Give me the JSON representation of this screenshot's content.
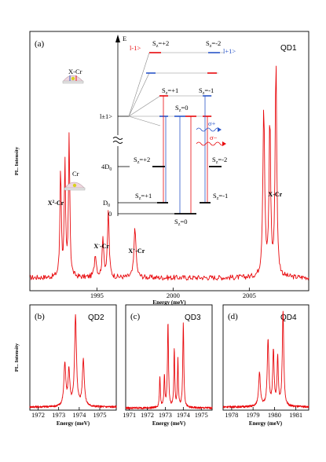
{
  "chart_data": [
    {
      "type": "line",
      "panel_label": "(a)",
      "title": "QD1",
      "xlabel": "Energy (meV)",
      "ylabel": "PL. Intensity",
      "xlim": [
        1990.6,
        2008.9
      ],
      "x_ticks": [
        "1995",
        "2000",
        "2005"
      ],
      "x_tick_values": [
        1995,
        2000,
        2005
      ],
      "grid": false,
      "peak_labels": [
        {
          "text": "X²-Cr",
          "x": 1992.3
        },
        {
          "text": "X⁻-Cr",
          "x": 1995.3
        },
        {
          "text": "X⁺-Cr",
          "x": 1997.6
        },
        {
          "text": "X-Cr",
          "x": 2006.7
        }
      ],
      "series": [
        {
          "color": "#e8080c",
          "baseline": 0.05,
          "peaks": [
            {
              "x": 1992.62,
              "h": 0.44,
              "w": 0.1
            },
            {
              "x": 1992.9,
              "h": 0.44,
              "w": 0.1
            },
            {
              "x": 1993.18,
              "h": 0.55,
              "w": 0.1
            },
            {
              "x": 1994.9,
              "h": 0.09,
              "w": 0.15
            },
            {
              "x": 1995.4,
              "h": 0.15,
              "w": 0.13
            },
            {
              "x": 1995.75,
              "h": 0.26,
              "w": 0.12
            },
            {
              "x": 1997.5,
              "h": 0.2,
              "w": 0.15
            },
            {
              "x": 2005.95,
              "h": 0.66,
              "w": 0.14
            },
            {
              "x": 2006.35,
              "h": 0.61,
              "w": 0.12
            },
            {
              "x": 2006.75,
              "h": 0.85,
              "w": 0.12
            }
          ]
        }
      ]
    },
    {
      "type": "line",
      "panel_label": "(b)",
      "title": "QD2",
      "xlabel": "Energy (meV)",
      "ylabel": "PL. Intensity",
      "xlim": [
        1971.6,
        1975.8
      ],
      "x_ticks": [
        "1972",
        "1973",
        "1974",
        "1975"
      ],
      "x_tick_values": [
        1972,
        1973,
        1974,
        1975
      ],
      "grid": false,
      "series": [
        {
          "color": "#e8080c",
          "baseline": 0.03,
          "peaks": [
            {
              "x": 1973.3,
              "h": 0.4,
              "w": 0.11
            },
            {
              "x": 1973.5,
              "h": 0.33,
              "w": 0.1
            },
            {
              "x": 1973.82,
              "h": 0.85,
              "w": 0.11
            },
            {
              "x": 1974.2,
              "h": 0.44,
              "w": 0.11
            }
          ]
        }
      ]
    },
    {
      "type": "line",
      "panel_label": "(c)",
      "title": "QD3",
      "xlabel": "Energy (meV)",
      "ylabel": "",
      "xlim": [
        1970.8,
        1975.6
      ],
      "x_ticks": [
        "1971",
        "1972",
        "1973",
        "1974",
        "1975"
      ],
      "x_tick_values": [
        1971,
        1972,
        1973,
        1974,
        1975
      ],
      "grid": false,
      "series": [
        {
          "color": "#e8080c",
          "baseline": 0.02,
          "peaks": [
            {
              "x": 1972.7,
              "h": 0.3,
              "w": 0.06
            },
            {
              "x": 1972.95,
              "h": 0.3,
              "w": 0.06
            },
            {
              "x": 1973.15,
              "h": 0.8,
              "w": 0.07
            },
            {
              "x": 1973.5,
              "h": 0.55,
              "w": 0.06
            },
            {
              "x": 1973.7,
              "h": 0.45,
              "w": 0.06
            },
            {
              "x": 1974.0,
              "h": 0.8,
              "w": 0.07
            }
          ]
        }
      ]
    },
    {
      "type": "line",
      "panel_label": "(d)",
      "title": "QD4",
      "xlabel": "Energy (meV)",
      "ylabel": "",
      "xlim": [
        1977.6,
        1981.6
      ],
      "x_ticks": [
        "1978",
        "1979",
        "1980",
        "1981"
      ],
      "x_tick_values": [
        1978,
        1979,
        1980,
        1981
      ],
      "grid": false,
      "series": [
        {
          "color": "#e8080c",
          "baseline": 0.03,
          "peaks": [
            {
              "x": 1979.3,
              "h": 0.32,
              "w": 0.1
            },
            {
              "x": 1979.7,
              "h": 0.62,
              "w": 0.09
            },
            {
              "x": 1979.95,
              "h": 0.52,
              "w": 0.08
            },
            {
              "x": 1980.15,
              "h": 0.45,
              "w": 0.07
            },
            {
              "x": 1980.4,
              "h": 0.9,
              "w": 0.08
            }
          ]
        }
      ]
    }
  ],
  "level_diagram": {
    "axis_label": "E",
    "state_minus1": "l-1>",
    "state_plus1": "l+1>",
    "state_pm1": "l±1>",
    "state_pm1_label": "l±1>",
    "xcr_label": "X-Cr",
    "cr_label": "Cr",
    "sx_plus2": "S",
    "sx_plus2_sub": "z",
    "sx_plus2_val": "=+2",
    "sx_minus2_val": "=-2",
    "sx_plus1_val": "=+1",
    "sx_zero_val": "=0",
    "sx_minus1_val": "=-1",
    "d_4d0": "4D",
    "d_4d0_sub": "0",
    "d_d0": "D",
    "d_d0_sub": "0",
    "zero": "0",
    "sigma_plus": "σ+",
    "sigma_minus": "σ−",
    "colors": {
      "red": "#e8080c",
      "blue": "#2a55c8",
      "grey": "#8a8a8a"
    }
  }
}
